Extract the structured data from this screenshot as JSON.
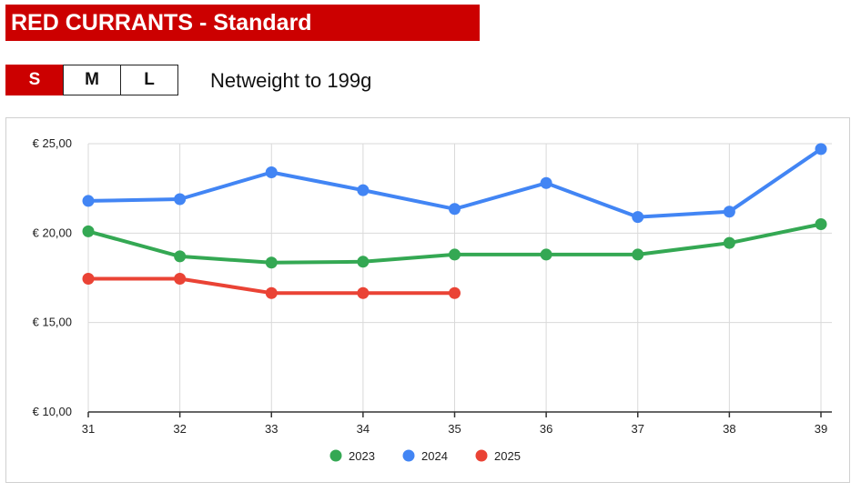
{
  "header": {
    "title": "RED CURRANTS - Standard"
  },
  "size_selector": {
    "options": [
      {
        "label": "S",
        "active": true
      },
      {
        "label": "M",
        "active": false
      },
      {
        "label": "L",
        "active": false
      }
    ],
    "active_color": "#cc0000"
  },
  "weight_label": "Netweight to 199g",
  "chart_data": {
    "type": "line",
    "title": "",
    "xlabel": "",
    "ylabel": "",
    "x": [
      31,
      32,
      33,
      34,
      35,
      36,
      37,
      38,
      39
    ],
    "x_tick_labels": [
      "31",
      "32",
      "33",
      "34",
      "35",
      "36",
      "37",
      "38",
      "39"
    ],
    "ylim": [
      10,
      25
    ],
    "y_ticks": [
      10,
      15,
      20,
      25
    ],
    "y_tick_labels": [
      "€ 10,00",
      "€ 15,00",
      "€ 20,00",
      "€ 25,00"
    ],
    "grid": true,
    "legend_position": "bottom",
    "series": [
      {
        "name": "2023",
        "color": "#34a853",
        "values": [
          20.1,
          18.7,
          18.35,
          18.4,
          18.8,
          18.8,
          18.8,
          19.45,
          20.5
        ]
      },
      {
        "name": "2024",
        "color": "#4285f4",
        "values": [
          21.8,
          21.9,
          23.4,
          22.4,
          21.35,
          22.8,
          20.9,
          21.2,
          24.7
        ]
      },
      {
        "name": "2025",
        "color": "#ea4335",
        "values": [
          17.45,
          17.45,
          16.65,
          16.65,
          16.65,
          null,
          null,
          null,
          null
        ]
      }
    ]
  }
}
